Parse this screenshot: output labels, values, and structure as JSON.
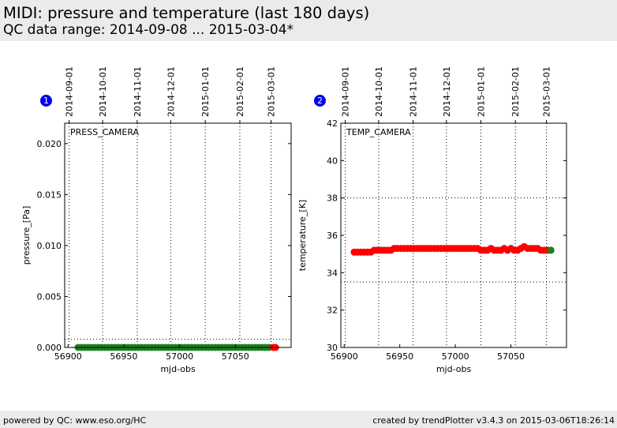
{
  "page": {
    "title": "MIDI: pressure and temperature (last 180 days)",
    "subtitle": "QC data range: 2014-09-08 ... 2015-03-04*"
  },
  "footer": {
    "left": "powered by QC: www.eso.org/HC",
    "right": "created by trendPlotter v3.4.3 on 2015-03-06T18:26:14"
  },
  "colors": {
    "data": "#ff0000",
    "last_point": "#1e7f1e",
    "header_bg": "#ebebeb",
    "badge": "#0000ee"
  },
  "chart_data": [
    {
      "id": "1",
      "type": "scatter",
      "panel_label": "PRESS_CAMERA",
      "xlabel": "mjd-obs",
      "ylabel": "pressure_[Pa]",
      "xlim": [
        56897,
        57100
      ],
      "ylim": [
        0,
        0.022
      ],
      "xticks": [
        56900,
        56950,
        57000,
        57050
      ],
      "yticks": [
        0.0,
        0.005,
        0.01,
        0.015,
        0.02
      ],
      "ytick_labels": [
        "0.000",
        "0.005",
        "0.010",
        "0.015",
        "0.020"
      ],
      "date_ticks": [
        {
          "mjd": 56901,
          "label": "2014-09-01"
        },
        {
          "mjd": 56931,
          "label": "2014-10-01"
        },
        {
          "mjd": 56962,
          "label": "2014-11-01"
        },
        {
          "mjd": 56992,
          "label": "2014-12-01"
        },
        {
          "mjd": 57023,
          "label": "2015-01-01"
        },
        {
          "mjd": 57054,
          "label": "2015-02-01"
        },
        {
          "mjd": 57082,
          "label": "2015-03-01"
        }
      ],
      "hlines": [
        0.0008
      ],
      "series": [
        {
          "color": "#1e7f1e",
          "points": [
            [
              56909,
              0
            ],
            [
              56912,
              0
            ],
            [
              56915,
              0
            ],
            [
              56918,
              0
            ],
            [
              56921,
              0
            ],
            [
              56924,
              0
            ],
            [
              56927,
              0
            ],
            [
              56930,
              0
            ],
            [
              56933,
              0
            ],
            [
              56936,
              0
            ],
            [
              56939,
              0
            ],
            [
              56942,
              0
            ],
            [
              56945,
              0
            ],
            [
              56948,
              0
            ],
            [
              56951,
              0
            ],
            [
              56954,
              0
            ],
            [
              56957,
              0
            ],
            [
              56960,
              0
            ],
            [
              56963,
              0
            ],
            [
              56966,
              0
            ],
            [
              56969,
              0
            ],
            [
              56972,
              0
            ],
            [
              56975,
              0
            ],
            [
              56978,
              0
            ],
            [
              56981,
              0
            ],
            [
              56984,
              0
            ],
            [
              56987,
              0
            ],
            [
              56990,
              0
            ],
            [
              56993,
              0
            ],
            [
              56996,
              0
            ],
            [
              56999,
              0
            ],
            [
              57002,
              0
            ],
            [
              57005,
              0
            ],
            [
              57008,
              0
            ],
            [
              57011,
              0
            ],
            [
              57014,
              0
            ],
            [
              57017,
              0
            ],
            [
              57020,
              0
            ],
            [
              57023,
              0
            ],
            [
              57026,
              0
            ],
            [
              57029,
              0
            ],
            [
              57032,
              0
            ],
            [
              57035,
              0
            ],
            [
              57038,
              0
            ],
            [
              57041,
              0
            ],
            [
              57044,
              0
            ],
            [
              57047,
              0
            ],
            [
              57050,
              0
            ],
            [
              57053,
              0
            ],
            [
              57056,
              0
            ],
            [
              57059,
              0
            ],
            [
              57062,
              0
            ],
            [
              57065,
              0
            ],
            [
              57068,
              0
            ],
            [
              57071,
              0
            ],
            [
              57074,
              0
            ],
            [
              57077,
              0
            ],
            [
              57080,
              0
            ]
          ]
        },
        {
          "color": "#ff0000",
          "points": [
            [
              57084,
              0
            ],
            [
              57086,
              0
            ]
          ]
        }
      ]
    },
    {
      "id": "2",
      "type": "scatter",
      "panel_label": "TEMP_CAMERA",
      "xlabel": "mjd-obs",
      "ylabel": "temperature_[K]",
      "xlim": [
        56897,
        57100
      ],
      "ylim": [
        30,
        42
      ],
      "xticks": [
        56900,
        56950,
        57000,
        57050
      ],
      "yticks": [
        30,
        32,
        34,
        36,
        38,
        40,
        42
      ],
      "ytick_labels": [
        "30",
        "32",
        "34",
        "36",
        "38",
        "40",
        "42"
      ],
      "date_ticks": [
        {
          "mjd": 56901,
          "label": "2014-09-01"
        },
        {
          "mjd": 56931,
          "label": "2014-10-01"
        },
        {
          "mjd": 56962,
          "label": "2014-11-01"
        },
        {
          "mjd": 56992,
          "label": "2014-12-01"
        },
        {
          "mjd": 57023,
          "label": "2015-01-01"
        },
        {
          "mjd": 57054,
          "label": "2015-02-01"
        },
        {
          "mjd": 57082,
          "label": "2015-03-01"
        }
      ],
      "hlines": [
        33.5,
        38
      ],
      "series": [
        {
          "color": "#ff0000",
          "points": [
            [
              56909,
              35.1
            ],
            [
              56912,
              35.1
            ],
            [
              56915,
              35.1
            ],
            [
              56918,
              35.1
            ],
            [
              56921,
              35.1
            ],
            [
              56924,
              35.1
            ],
            [
              56927,
              35.2
            ],
            [
              56930,
              35.2
            ],
            [
              56933,
              35.2
            ],
            [
              56936,
              35.2
            ],
            [
              56939,
              35.2
            ],
            [
              56942,
              35.2
            ],
            [
              56945,
              35.3
            ],
            [
              56948,
              35.3
            ],
            [
              56951,
              35.3
            ],
            [
              56954,
              35.3
            ],
            [
              56957,
              35.3
            ],
            [
              56960,
              35.3
            ],
            [
              56963,
              35.3
            ],
            [
              56966,
              35.3
            ],
            [
              56969,
              35.3
            ],
            [
              56972,
              35.3
            ],
            [
              56975,
              35.3
            ],
            [
              56978,
              35.3
            ],
            [
              56981,
              35.3
            ],
            [
              56984,
              35.3
            ],
            [
              56987,
              35.3
            ],
            [
              56990,
              35.3
            ],
            [
              56993,
              35.3
            ],
            [
              56996,
              35.3
            ],
            [
              56999,
              35.3
            ],
            [
              57002,
              35.3
            ],
            [
              57005,
              35.3
            ],
            [
              57008,
              35.3
            ],
            [
              57011,
              35.3
            ],
            [
              57014,
              35.3
            ],
            [
              57017,
              35.3
            ],
            [
              57020,
              35.3
            ],
            [
              57023,
              35.2
            ],
            [
              57026,
              35.2
            ],
            [
              57029,
              35.2
            ],
            [
              57032,
              35.3
            ],
            [
              57035,
              35.2
            ],
            [
              57038,
              35.2
            ],
            [
              57041,
              35.2
            ],
            [
              57044,
              35.3
            ],
            [
              57047,
              35.2
            ],
            [
              57050,
              35.3
            ],
            [
              57053,
              35.2
            ],
            [
              57056,
              35.2
            ],
            [
              57059,
              35.3
            ],
            [
              57062,
              35.4
            ],
            [
              57065,
              35.3
            ],
            [
              57068,
              35.3
            ],
            [
              57071,
              35.3
            ],
            [
              57074,
              35.3
            ],
            [
              57077,
              35.2
            ],
            [
              57080,
              35.2
            ],
            [
              57083,
              35.2
            ]
          ]
        },
        {
          "color": "#1e7f1e",
          "points": [
            [
              57086,
              35.2
            ]
          ]
        }
      ]
    }
  ]
}
